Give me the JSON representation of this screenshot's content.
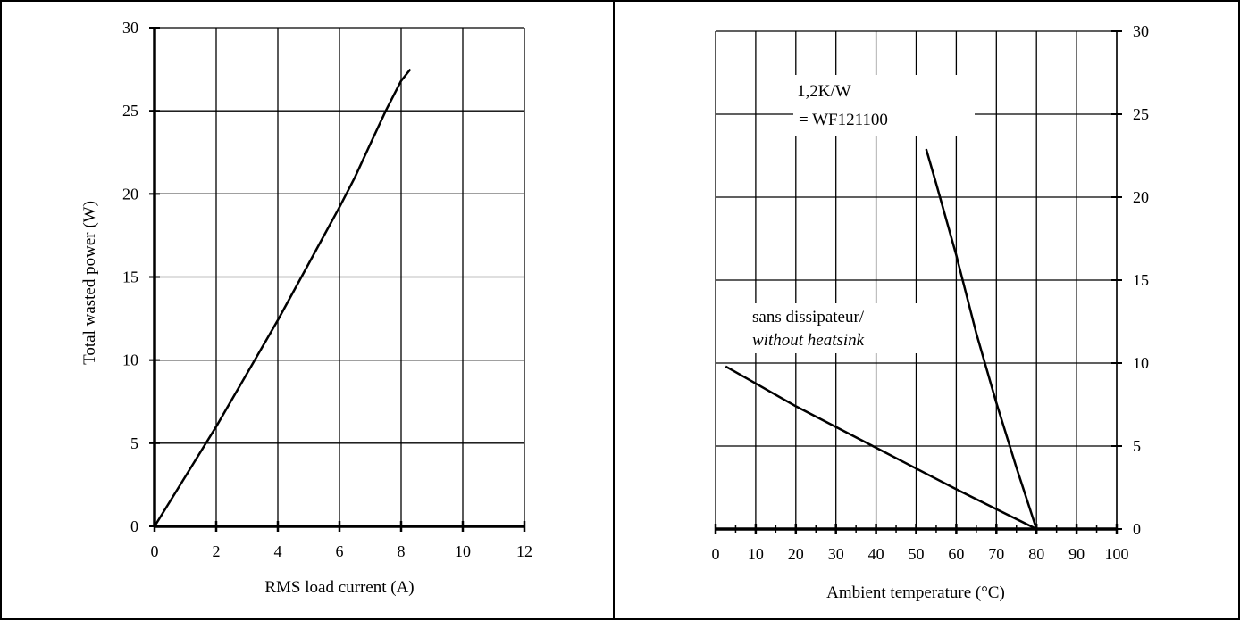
{
  "chart_data": [
    {
      "type": "line",
      "xlabel": "RMS load current (A)",
      "ylabel": "Total wasted power (W)",
      "xlim": [
        0,
        12
      ],
      "ylim": [
        0,
        30
      ],
      "x_ticks": [
        "0",
        "2",
        "4",
        "6",
        "8",
        "10",
        "12"
      ],
      "y_ticks": [
        "0",
        "5",
        "10",
        "15",
        "20",
        "25",
        "30"
      ],
      "grid": true,
      "series": [
        {
          "x": [
            0,
            0.5,
            1,
            2,
            3,
            4,
            5,
            6,
            6.5,
            7,
            7.5,
            8,
            8.3
          ],
          "y": [
            0,
            1.5,
            3,
            6,
            9.2,
            12.4,
            15.8,
            19.2,
            21,
            23,
            25,
            26.8,
            27.5
          ]
        }
      ]
    },
    {
      "type": "line",
      "xlabel": "Ambient temperature (°C)",
      "ylabel": "",
      "xlim": [
        0,
        100
      ],
      "ylim": [
        0,
        30
      ],
      "x_ticks": [
        "0",
        "10",
        "20",
        "30",
        "40",
        "50",
        "60",
        "70",
        "80",
        "90",
        "100"
      ],
      "y_ticks": [
        "0",
        "5",
        "10",
        "15",
        "20",
        "25",
        "30"
      ],
      "y_axis_side": "right",
      "grid": true,
      "annotations": [
        {
          "lines": [
            "1,2K/W",
            "= WF121100"
          ]
        },
        {
          "lines": [
            "sans dissipateur/",
            "without heatsink"
          ],
          "italic_line": 1
        }
      ],
      "series": [
        {
          "x": [
            2.5,
            20,
            40,
            60,
            70,
            80
          ],
          "y": [
            9.8,
            7.4,
            4.9,
            2.4,
            1.2,
            0
          ]
        },
        {
          "x": [
            52.5,
            55,
            60,
            65,
            70,
            75,
            80
          ],
          "y": [
            22.9,
            20.8,
            16.5,
            11.8,
            7.6,
            3.7,
            0
          ]
        }
      ]
    }
  ]
}
